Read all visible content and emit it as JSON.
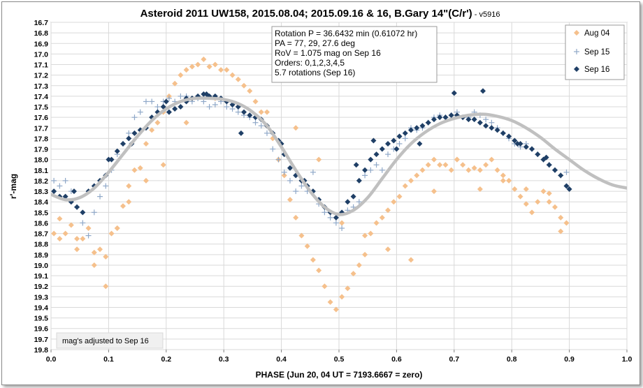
{
  "chart_data": {
    "type": "scatter",
    "title": "Asteroid 2011 UW158, 2015.08.04; 2015.09.16 & 16, B.Gary 14\"(C/r')",
    "title_suffix": " - v5916",
    "xlabel": "PHASE (Jun 20, 04 UT = 7193.6667 = zero)",
    "ylabel": "r'-mag",
    "xlim": [
      0.0,
      1.0
    ],
    "ylim": [
      16.7,
      19.8
    ],
    "y_inverted": true,
    "grid": true,
    "legend_position": "top-right",
    "x_ticks": [
      "0.0",
      "0.1",
      "0.2",
      "0.3",
      "0.4",
      "0.5",
      "0.6",
      "0.7",
      "0.8",
      "0.9",
      "1.0"
    ],
    "y_ticks": [
      "16.7",
      "16.8",
      "16.9",
      "17.0",
      "17.1",
      "17.2",
      "17.3",
      "17.4",
      "17.5",
      "17.6",
      "17.7",
      "17.8",
      "17.9",
      "18.0",
      "18.1",
      "18.2",
      "18.3",
      "18.4",
      "18.5",
      "18.6",
      "18.7",
      "18.8",
      "18.9",
      "19.0",
      "19.1",
      "19.2",
      "19.3",
      "19.4",
      "19.5",
      "19.6",
      "19.7",
      "19.8"
    ],
    "annotation_lines": [
      "Rotation P = 36.6432 min (0.61072 hr)",
      "PA =  77, 29, 27.6 deg",
      "RoV = 1.075 mag on Sep 16",
      "Orders: 0,1,2,3,4,5",
      " 5.7 rotations (Sep 16)"
    ],
    "note": "mag's adjusted to Sep 16",
    "series": [
      {
        "name": "Aug 04",
        "marker": "diamond",
        "color": "#f5c08c",
        "x": [
          0.005,
          0.015,
          0.025,
          0.035,
          0.045,
          0.055,
          0.065,
          0.075,
          0.085,
          0.095,
          0.105,
          0.115,
          0.125,
          0.135,
          0.145,
          0.155,
          0.165,
          0.175,
          0.185,
          0.195,
          0.205,
          0.215,
          0.225,
          0.235,
          0.245,
          0.255,
          0.265,
          0.275,
          0.285,
          0.295,
          0.305,
          0.315,
          0.325,
          0.335,
          0.345,
          0.355,
          0.365,
          0.375,
          0.385,
          0.395,
          0.405,
          0.415,
          0.425,
          0.435,
          0.445,
          0.455,
          0.465,
          0.475,
          0.485,
          0.495,
          0.505,
          0.515,
          0.525,
          0.535,
          0.545,
          0.555,
          0.565,
          0.575,
          0.585,
          0.595,
          0.605,
          0.615,
          0.625,
          0.635,
          0.645,
          0.655,
          0.665,
          0.675,
          0.685,
          0.695,
          0.705,
          0.715,
          0.725,
          0.735,
          0.745,
          0.755,
          0.765,
          0.775,
          0.785,
          0.795,
          0.805,
          0.815,
          0.825,
          0.835,
          0.845,
          0.855,
          0.865,
          0.875,
          0.885,
          0.895,
          0.015,
          0.045,
          0.075,
          0.095,
          0.115,
          0.135,
          0.165,
          0.195,
          0.235,
          0.285,
          0.375,
          0.425,
          0.465,
          0.505,
          0.545,
          0.585,
          0.625,
          0.665,
          0.705,
          0.745,
          0.785,
          0.825,
          0.865,
          0.885
        ],
        "y": [
          18.7,
          18.56,
          18.7,
          18.62,
          18.75,
          18.75,
          18.65,
          18.88,
          18.85,
          18.92,
          18.7,
          18.65,
          18.44,
          18.25,
          18.1,
          18.08,
          17.85,
          17.72,
          17.65,
          17.55,
          17.4,
          17.28,
          17.2,
          17.15,
          17.12,
          17.1,
          17.05,
          17.12,
          17.1,
          17.15,
          17.15,
          17.2,
          17.24,
          17.3,
          17.35,
          17.45,
          17.55,
          17.68,
          17.8,
          18.0,
          18.15,
          18.38,
          18.55,
          18.72,
          18.82,
          18.95,
          19.05,
          19.2,
          19.35,
          19.42,
          19.3,
          19.22,
          19.08,
          19.0,
          18.9,
          18.7,
          18.6,
          18.55,
          18.48,
          18.4,
          18.35,
          18.25,
          18.2,
          18.15,
          18.1,
          18.05,
          18.0,
          18.05,
          18.05,
          18.1,
          18.0,
          18.05,
          18.1,
          18.08,
          18.1,
          18.05,
          18.0,
          18.1,
          18.15,
          18.2,
          18.28,
          18.35,
          18.42,
          18.5,
          18.4,
          18.3,
          18.32,
          18.45,
          18.55,
          18.6,
          18.75,
          18.85,
          19.0,
          19.2,
          18.65,
          18.4,
          18.2,
          18.05,
          17.65,
          17.42,
          17.55,
          17.7,
          18.0,
          18.6,
          18.72,
          18.85,
          18.95,
          18.3,
          18.0,
          18.28,
          18.2,
          18.28,
          18.4,
          18.68
        ]
      },
      {
        "name": "Sep 15",
        "marker": "plus",
        "color": "#8fa8c8",
        "x": [
          0.005,
          0.015,
          0.025,
          0.035,
          0.045,
          0.055,
          0.065,
          0.075,
          0.085,
          0.095,
          0.105,
          0.115,
          0.125,
          0.135,
          0.145,
          0.155,
          0.165,
          0.175,
          0.185,
          0.195,
          0.205,
          0.215,
          0.225,
          0.235,
          0.245,
          0.255,
          0.265,
          0.275,
          0.285,
          0.295,
          0.305,
          0.315,
          0.325,
          0.335,
          0.345,
          0.355,
          0.365,
          0.375,
          0.385,
          0.395,
          0.405,
          0.415,
          0.425,
          0.435,
          0.445,
          0.455,
          0.465,
          0.475,
          0.485,
          0.495,
          0.505,
          0.515,
          0.525,
          0.535,
          0.545,
          0.555,
          0.565,
          0.575,
          0.585,
          0.595,
          0.605,
          0.615,
          0.625,
          0.635,
          0.645,
          0.655,
          0.665,
          0.675,
          0.685,
          0.695,
          0.705,
          0.715,
          0.725,
          0.735,
          0.745,
          0.755,
          0.765,
          0.775,
          0.785,
          0.795,
          0.805,
          0.815,
          0.825,
          0.835,
          0.845,
          0.855,
          0.865,
          0.875,
          0.885,
          0.895
        ],
        "y": [
          18.2,
          18.25,
          18.2,
          18.3,
          18.45,
          18.6,
          18.72,
          18.5,
          18.35,
          18.25,
          18.1,
          17.95,
          17.85,
          17.75,
          17.6,
          17.55,
          17.45,
          17.45,
          17.5,
          17.45,
          17.42,
          17.45,
          17.4,
          17.4,
          17.45,
          17.42,
          17.45,
          17.5,
          17.48,
          17.45,
          17.5,
          17.52,
          17.55,
          17.58,
          17.6,
          17.65,
          17.68,
          17.75,
          17.9,
          18.0,
          18.12,
          18.2,
          18.3,
          18.25,
          18.3,
          18.12,
          18.42,
          18.5,
          18.55,
          18.6,
          18.65,
          18.48,
          18.45,
          18.4,
          18.15,
          18.1,
          18.05,
          18.1,
          17.95,
          17.9,
          17.85,
          17.8,
          17.7,
          17.72,
          17.7,
          17.65,
          17.6,
          17.58,
          17.6,
          17.58,
          17.55,
          17.6,
          17.6,
          17.55,
          17.58,
          17.62,
          17.65,
          17.7,
          17.75,
          17.8,
          17.85,
          17.88,
          17.85,
          17.9,
          17.95,
          18.0,
          18.05,
          18.1,
          18.15,
          18.12
        ]
      },
      {
        "name": "Sep 16",
        "marker": "diamond",
        "color": "#1f3f66",
        "x": [
          0.005,
          0.015,
          0.025,
          0.035,
          0.045,
          0.055,
          0.065,
          0.075,
          0.085,
          0.095,
          0.105,
          0.115,
          0.125,
          0.135,
          0.145,
          0.155,
          0.165,
          0.175,
          0.185,
          0.195,
          0.205,
          0.215,
          0.225,
          0.235,
          0.245,
          0.255,
          0.265,
          0.275,
          0.285,
          0.295,
          0.305,
          0.315,
          0.325,
          0.335,
          0.345,
          0.355,
          0.365,
          0.375,
          0.385,
          0.395,
          0.405,
          0.415,
          0.425,
          0.435,
          0.445,
          0.455,
          0.465,
          0.475,
          0.485,
          0.495,
          0.505,
          0.515,
          0.525,
          0.535,
          0.545,
          0.555,
          0.565,
          0.575,
          0.585,
          0.595,
          0.605,
          0.615,
          0.625,
          0.635,
          0.645,
          0.655,
          0.665,
          0.675,
          0.685,
          0.695,
          0.705,
          0.715,
          0.725,
          0.735,
          0.745,
          0.755,
          0.765,
          0.775,
          0.785,
          0.795,
          0.805,
          0.815,
          0.825,
          0.835,
          0.845,
          0.855,
          0.865,
          0.875,
          0.885,
          0.895,
          0.04,
          0.1,
          0.14,
          0.2,
          0.235,
          0.27,
          0.33,
          0.4,
          0.44,
          0.53,
          0.56,
          0.6,
          0.64,
          0.7,
          0.75,
          0.81,
          0.86,
          0.9
        ],
        "y": [
          18.3,
          18.35,
          18.35,
          18.4,
          18.45,
          18.5,
          18.3,
          18.25,
          18.2,
          18.15,
          18.0,
          17.92,
          17.85,
          17.8,
          17.75,
          17.72,
          17.7,
          17.6,
          17.55,
          17.5,
          17.55,
          17.52,
          17.5,
          17.45,
          17.42,
          17.4,
          17.38,
          17.4,
          17.4,
          17.42,
          17.45,
          17.48,
          17.5,
          17.55,
          17.58,
          17.6,
          17.62,
          17.68,
          17.75,
          17.82,
          17.95,
          18.08,
          18.15,
          18.2,
          18.25,
          18.3,
          18.38,
          18.45,
          18.5,
          18.55,
          18.5,
          18.4,
          18.35,
          18.2,
          18.1,
          18.0,
          17.95,
          17.9,
          17.85,
          17.82,
          17.78,
          17.75,
          17.72,
          17.7,
          17.68,
          17.65,
          17.62,
          17.6,
          17.6,
          17.58,
          17.58,
          17.6,
          17.62,
          17.62,
          17.65,
          17.68,
          17.7,
          17.72,
          17.75,
          17.78,
          17.82,
          17.85,
          17.88,
          17.9,
          17.95,
          18.0,
          18.05,
          18.1,
          18.15,
          18.25,
          18.3,
          18.0,
          17.85,
          17.45,
          17.42,
          17.38,
          17.75,
          17.85,
          18.2,
          18.05,
          17.82,
          17.9,
          17.85,
          17.37,
          17.35,
          17.85,
          17.98,
          18.28
        ]
      }
    ],
    "fit_curve": {
      "color": "#c0c0c0",
      "x": [
        0.0,
        0.025,
        0.05,
        0.075,
        0.1,
        0.125,
        0.15,
        0.175,
        0.2,
        0.225,
        0.25,
        0.275,
        0.3,
        0.325,
        0.35,
        0.375,
        0.4,
        0.425,
        0.45,
        0.475,
        0.5,
        0.525,
        0.55,
        0.575,
        0.6,
        0.625,
        0.65,
        0.675,
        0.7,
        0.725,
        0.75,
        0.775,
        0.8,
        0.825,
        0.85,
        0.875,
        0.9,
        0.925,
        0.95,
        0.975,
        1.0
      ],
      "y": [
        18.33,
        18.38,
        18.36,
        18.27,
        18.12,
        17.95,
        17.78,
        17.63,
        17.52,
        17.45,
        17.42,
        17.42,
        17.43,
        17.47,
        17.55,
        17.68,
        17.88,
        18.1,
        18.3,
        18.45,
        18.52,
        18.48,
        18.36,
        18.18,
        18.0,
        17.85,
        17.74,
        17.66,
        17.61,
        17.58,
        17.57,
        17.59,
        17.63,
        17.7,
        17.79,
        17.9,
        18.0,
        18.1,
        18.18,
        18.24,
        18.27
      ]
    }
  }
}
